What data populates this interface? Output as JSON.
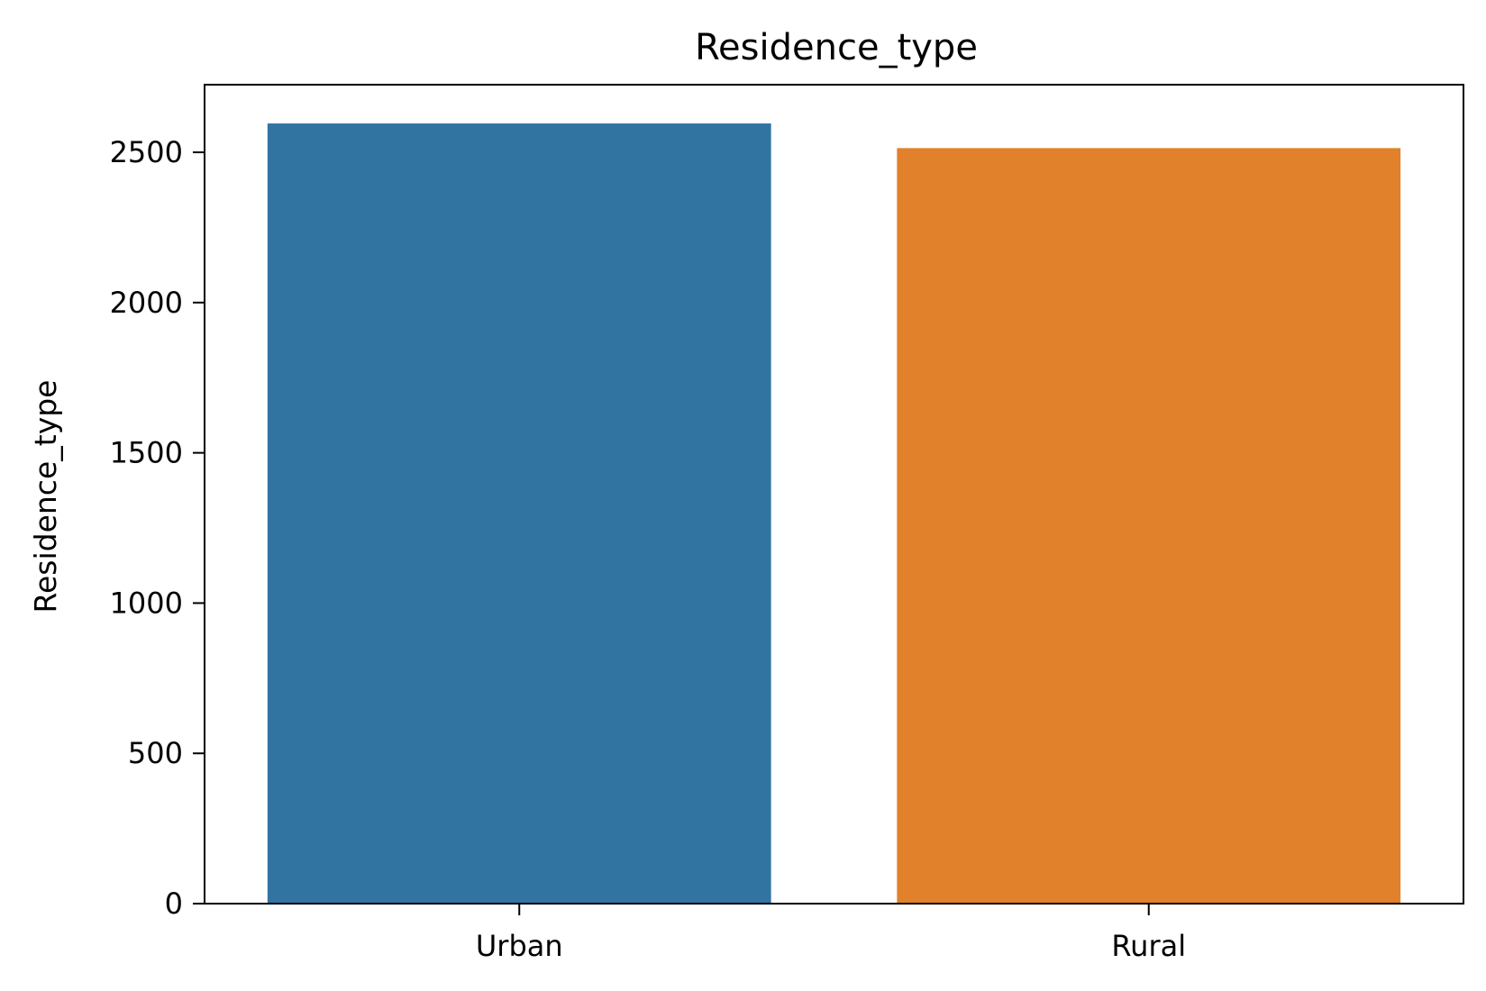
{
  "chart_data": {
    "type": "bar",
    "title": "Residence_type",
    "xlabel": "",
    "ylabel": "Residence_type",
    "categories": [
      "Urban",
      "Rural"
    ],
    "values": [
      2596,
      2514
    ],
    "colors": [
      "#3274a1",
      "#e1812c"
    ],
    "ylim": [
      0,
      2725
    ],
    "yticks": [
      0,
      500,
      1000,
      1500,
      2000,
      2500
    ],
    "grid": false,
    "legend": "none"
  }
}
